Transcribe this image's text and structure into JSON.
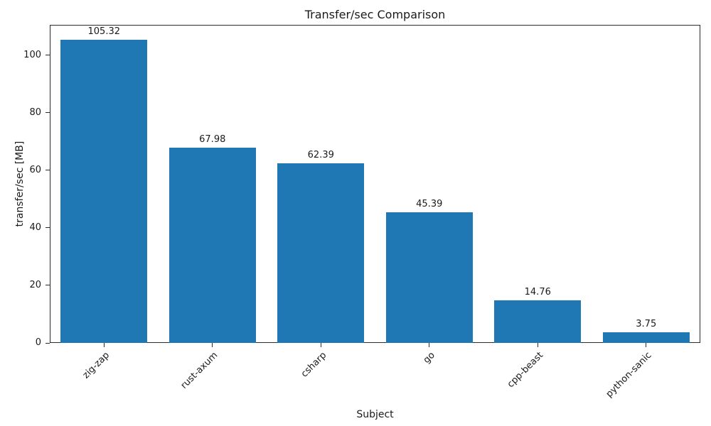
{
  "chart_data": {
    "type": "bar",
    "title": "Transfer/sec Comparison",
    "xlabel": "Subject",
    "ylabel": "transfer/sec [MB]",
    "categories": [
      "zig-zap",
      "rust-axum",
      "csharp",
      "go",
      "cpp-beast",
      "python-sanic"
    ],
    "values": [
      105.32,
      67.98,
      62.39,
      45.39,
      14.76,
      3.75
    ],
    "value_labels": [
      "105.32",
      "67.98",
      "62.39",
      "45.39",
      "14.76",
      "3.75"
    ],
    "yticks": [
      0,
      20,
      40,
      60,
      80,
      100
    ],
    "ylim": [
      0,
      110.586
    ],
    "bar_color": "#1f77b4",
    "bar_width_frac": 0.8,
    "grid": false,
    "legend_position": "none"
  }
}
